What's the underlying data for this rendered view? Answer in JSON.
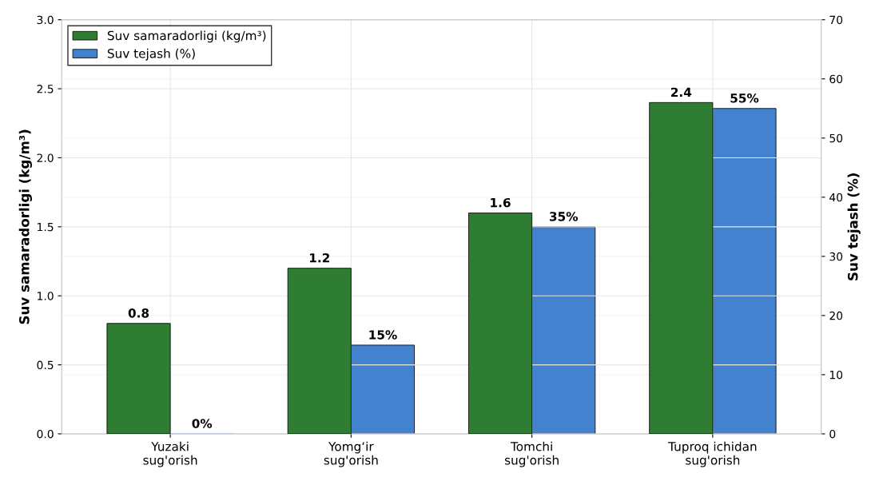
{
  "chart_data": {
    "type": "bar",
    "ylabel": "Suv samaradorligi (kg/m³)",
    "y2label": "Suv tejash (%)",
    "categories": [
      "Yuzaki\nsug'orish",
      "Yomg‘ir\nsug'orish",
      "Tomchi\nsug'orish",
      "Tuproq ichidan\nsug'orish"
    ],
    "series": [
      {
        "name": "Suv samaradorligi (kg/m³)",
        "color": "#2e7d32",
        "values": [
          0.8,
          1.2,
          1.6,
          2.4
        ],
        "value_labels": [
          "0.8",
          "1.2",
          "1.6",
          "2.4"
        ]
      },
      {
        "name": "Suv tejash (%)",
        "color": "#4382cf",
        "axis": "y2",
        "values": [
          0,
          15,
          35,
          55
        ],
        "value_labels": [
          "0%",
          "15%",
          "35%",
          "55%"
        ]
      }
    ],
    "ylim": [
      0,
      3.0
    ],
    "yticks": [
      {
        "value": 0,
        "label": "0.0"
      },
      0.5,
      {
        "value": 1,
        "label": "1.0"
      },
      1.5,
      {
        "value": 2,
        "label": "2.0"
      },
      2.5,
      {
        "value": 3,
        "label": "3.0"
      }
    ],
    "y2lim": [
      0,
      70
    ],
    "y2ticks": [
      0,
      10,
      20,
      30,
      40,
      50,
      60,
      70
    ],
    "grid": true,
    "legend": "top left"
  }
}
